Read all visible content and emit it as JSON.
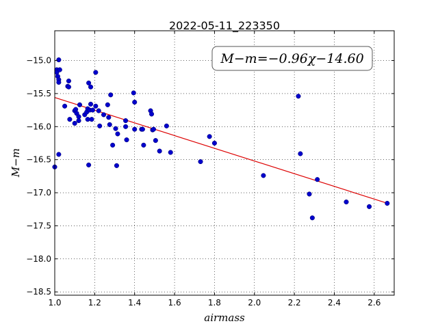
{
  "chart_data": {
    "type": "scatter",
    "title": "2022-05-11_223350",
    "xlabel": "airmass",
    "ylabel": "M−m",
    "xlim": [
      1.0,
      2.7
    ],
    "ylim": [
      -18.55,
      -14.55
    ],
    "y_inverted": true,
    "grid": true,
    "grid_style": "dotted",
    "x_ticks": [
      "1.0",
      "1.2",
      "1.4",
      "1.6",
      "1.8",
      "2.0",
      "2.2",
      "2.4",
      "2.6"
    ],
    "y_ticks": [
      "−15.0",
      "−15.5",
      "−16.0",
      "−16.5",
      "−17.0",
      "−17.5",
      "−18.0",
      "−18.5"
    ],
    "annotation": "M−m=−0.96χ−14.60",
    "annotation_position": "top-right",
    "marker_color": "#0000cc",
    "fit_color": "#dd0000",
    "fit": {
      "slope": -0.96,
      "intercept": -14.6,
      "x_range": [
        1.0,
        2.66
      ]
    },
    "points": [
      [
        1.0,
        -16.61
      ],
      [
        1.01,
        -15.14
      ],
      [
        1.01,
        -15.18
      ],
      [
        1.015,
        -15.24
      ],
      [
        1.02,
        -14.99
      ],
      [
        1.02,
        -15.29
      ],
      [
        1.02,
        -15.33
      ],
      [
        1.02,
        -16.42
      ],
      [
        1.025,
        -15.14
      ],
      [
        1.05,
        -15.69
      ],
      [
        1.065,
        -15.39
      ],
      [
        1.07,
        -15.4
      ],
      [
        1.07,
        -15.31
      ],
      [
        1.075,
        -15.89
      ],
      [
        1.1,
        -15.76
      ],
      [
        1.1,
        -15.95
      ],
      [
        1.105,
        -15.74
      ],
      [
        1.11,
        -15.8
      ],
      [
        1.12,
        -15.85
      ],
      [
        1.12,
        -15.91
      ],
      [
        1.125,
        -15.67
      ],
      [
        1.15,
        -15.82
      ],
      [
        1.16,
        -15.78
      ],
      [
        1.165,
        -15.73
      ],
      [
        1.165,
        -15.89
      ],
      [
        1.17,
        -15.34
      ],
      [
        1.17,
        -16.58
      ],
      [
        1.175,
        -15.75
      ],
      [
        1.18,
        -15.4
      ],
      [
        1.18,
        -15.66
      ],
      [
        1.185,
        -15.89
      ],
      [
        1.19,
        -15.75
      ],
      [
        1.205,
        -15.69
      ],
      [
        1.205,
        -15.18
      ],
      [
        1.22,
        -15.76
      ],
      [
        1.225,
        -15.99
      ],
      [
        1.245,
        -15.82
      ],
      [
        1.265,
        -15.67
      ],
      [
        1.27,
        -15.86
      ],
      [
        1.275,
        -15.97
      ],
      [
        1.28,
        -15.52
      ],
      [
        1.29,
        -16.28
      ],
      [
        1.305,
        -16.03
      ],
      [
        1.31,
        -16.59
      ],
      [
        1.315,
        -16.11
      ],
      [
        1.355,
        -15.91
      ],
      [
        1.355,
        -16.0
      ],
      [
        1.36,
        -16.2
      ],
      [
        1.395,
        -15.49
      ],
      [
        1.4,
        -15.63
      ],
      [
        1.4,
        -16.04
      ],
      [
        1.435,
        -16.04
      ],
      [
        1.44,
        -16.04
      ],
      [
        1.445,
        -16.28
      ],
      [
        1.48,
        -15.76
      ],
      [
        1.485,
        -15.81
      ],
      [
        1.49,
        -16.05
      ],
      [
        1.495,
        -16.04
      ],
      [
        1.505,
        -16.21
      ],
      [
        1.525,
        -16.37
      ],
      [
        1.56,
        -15.99
      ],
      [
        1.58,
        -16.39
      ],
      [
        1.73,
        -16.53
      ],
      [
        1.775,
        -16.15
      ],
      [
        1.8,
        -16.25
      ],
      [
        2.045,
        -16.74
      ],
      [
        2.22,
        -15.54
      ],
      [
        2.23,
        -16.41
      ],
      [
        2.275,
        -17.02
      ],
      [
        2.29,
        -17.38
      ],
      [
        2.315,
        -16.8
      ],
      [
        2.46,
        -17.14
      ],
      [
        2.575,
        -17.21
      ],
      [
        2.665,
        -17.16
      ]
    ]
  }
}
